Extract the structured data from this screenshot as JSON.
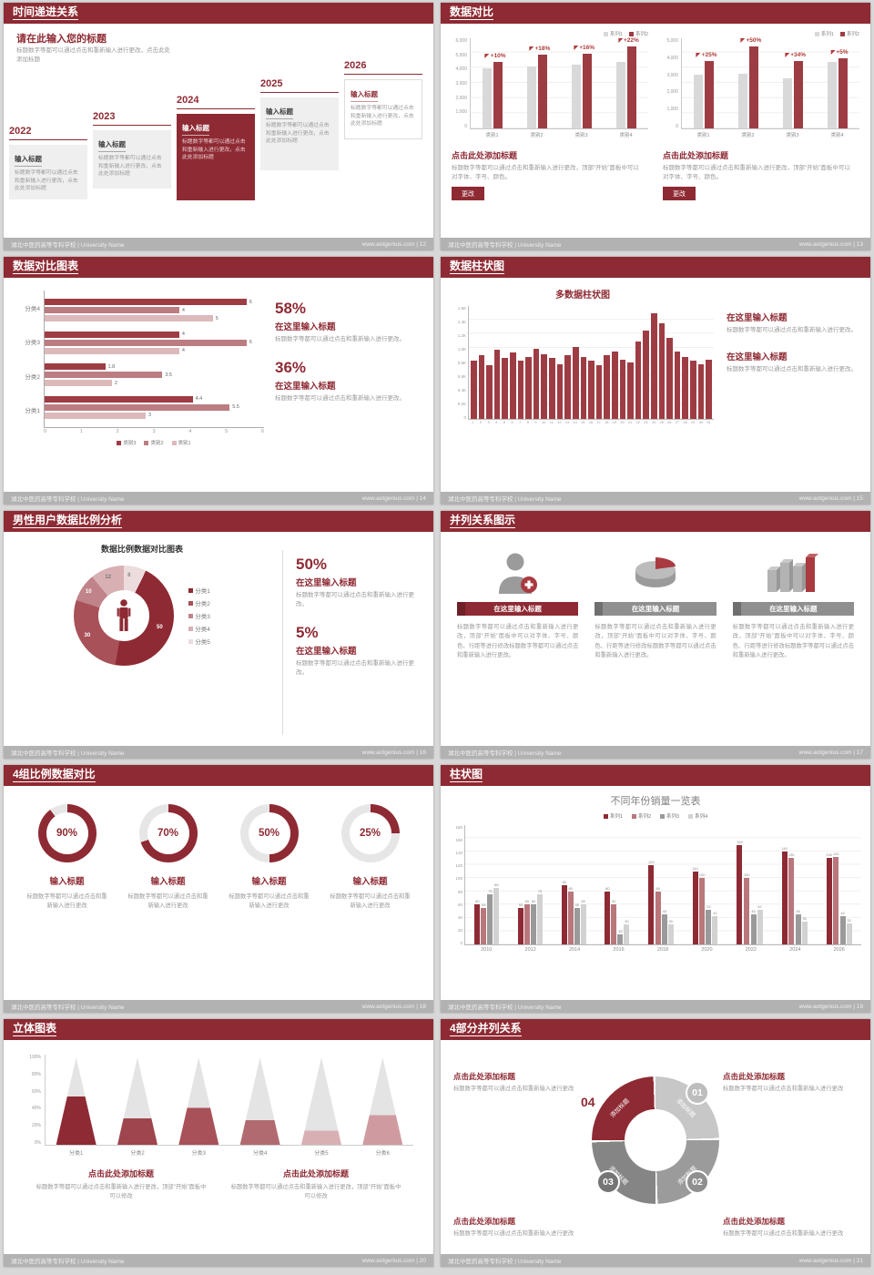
{
  "colors": {
    "primary": "#8e2a33",
    "bar_red": "#9e3c44",
    "bar_gray": "#d9d9d9",
    "red_mid": "#bb7d81",
    "red_light": "#dcb9bb"
  },
  "common": {
    "footer_left": "湖北中医药高等专科学校 | University Name"
  },
  "slides": {
    "s12": {
      "header": "时间递进关系",
      "footer_right": "www.aotgenius.com | 12",
      "title": "请在此输入您的标题",
      "subtitle": "标题数字等都可以通过点击和重新输入进行更改，点击此处添加标题",
      "steps": [
        {
          "year": "2022",
          "style": "gray",
          "title": "输入标题",
          "text": "标题数字等都可以通过点击和重新输入进行更改，点击此处添加标题"
        },
        {
          "year": "2023",
          "style": "gray",
          "title": "输入标题",
          "text": "标题数字等都可以通过点击和重新输入进行更改，点击此处添加标题"
        },
        {
          "year": "2024",
          "style": "red",
          "title": "输入标题",
          "text": "标题数字等都可以通过点击和重新输入进行更改，点击此处添加标题"
        },
        {
          "year": "2025",
          "style": "gray",
          "title": "输入标题",
          "text": "标题数字等都可以通过点击和重新输入进行更改，点击此处添加标题"
        },
        {
          "year": "2026",
          "style": "white",
          "title": "输入标题",
          "text": "标题数字等都可以通过点击和重新输入进行更改，点击此处添加标题"
        }
      ]
    },
    "s13": {
      "header": "数据对比",
      "footer_right": "www.aotgenius.com | 13",
      "charts": [
        {
          "legend": [
            "系列1",
            "系列2"
          ],
          "categories": [
            "类别1",
            "类别2",
            "类别3",
            "类别4"
          ],
          "gray": [
            4000,
            4150,
            4250,
            4450
          ],
          "red": [
            4400,
            4900,
            4950,
            5450
          ],
          "labels": [
            "+10%",
            "+18%",
            "+16%",
            "+22%"
          ],
          "ymax": 6000,
          "yticks": [
            "6,000",
            "5,000",
            "4,000",
            "3,000",
            "2,000",
            "1,000",
            "0"
          ],
          "title": "点击此处添加标题",
          "desc": "标题数字等都可以通过点击和重新输入进行更改，顶部“开始”面板中可以对字体、字号、颜色。",
          "btn": "更改"
        },
        {
          "legend": [
            "系列1",
            "系列2"
          ],
          "categories": [
            "类别1",
            "类别2",
            "类别3",
            "类别4"
          ],
          "gray": [
            3000,
            3050,
            2800,
            3700
          ],
          "red": [
            3750,
            4550,
            3750,
            3900
          ],
          "labels": [
            "+25%",
            "+50%",
            "+34%",
            "+5%"
          ],
          "ymax": 5000,
          "yticks": [
            "5,000",
            "4,000",
            "3,000",
            "2,000",
            "1,000",
            "0"
          ],
          "title": "点击此处添加标题",
          "desc": "标题数字等都可以通过点击和重新输入进行更改，顶部“开始”面板中可以对字体、字号、颜色。",
          "btn": "更改"
        }
      ]
    },
    "s14": {
      "header": "数据对比图表",
      "footer_right": "www.aotgenius.com | 14",
      "chart": {
        "categories": [
          "分类4",
          "分类3",
          "分类2",
          "分类1"
        ],
        "values": [
          [
            6,
            4,
            5
          ],
          [
            4,
            6,
            4
          ],
          [
            1.8,
            3.5,
            2
          ],
          [
            4.4,
            5.5,
            3
          ]
        ],
        "colors": [
          "#9e3c44",
          "#bb7d81",
          "#dcb9bb"
        ],
        "series": [
          "类别3",
          "类别2",
          "类别1"
        ],
        "xticks": [
          "0",
          "1",
          "2",
          "3",
          "4",
          "5",
          "6"
        ],
        "xmax": 6
      },
      "stats": [
        {
          "pct": "58%",
          "title": "在这里输入标题",
          "text": "标题数字等都可以通过点击和重新输入进行更改。"
        },
        {
          "pct": "36%",
          "title": "在这里输入标题",
          "text": "标题数字等都可以通过点击和重新输入进行更改。"
        }
      ]
    },
    "s15": {
      "header": "数据柱状图",
      "footer_right": "www.aotgenius.com | 15",
      "chart_title": "多数据柱状图",
      "ymax": 1600,
      "yticks": [
        "1.6K",
        "1.4K",
        "1.2K",
        "1.0K",
        "0.8K",
        "0.6K",
        "0.4K",
        "0.2K",
        "0"
      ],
      "values": [
        820,
        900,
        760,
        980,
        870,
        940,
        820,
        880,
        1000,
        920,
        860,
        780,
        900,
        1020,
        880,
        820,
        760,
        900,
        960,
        840,
        800,
        1100,
        1250,
        1500,
        1350,
        1150,
        950,
        880,
        820,
        780,
        840
      ],
      "xlabels": [
        "1",
        "2",
        "3",
        "4",
        "5",
        "6",
        "7",
        "8",
        "9",
        "10",
        "11",
        "12",
        "13",
        "14",
        "15",
        "16",
        "17",
        "18",
        "19",
        "20",
        "21",
        "22",
        "23",
        "24",
        "25",
        "26",
        "27",
        "28",
        "29",
        "30",
        "31"
      ],
      "blocks": [
        {
          "title": "在这里输入标题",
          "text": "标题数字等都可以通过点击和重新输入进行更改。"
        },
        {
          "title": "在这里输入标题",
          "text": "标题数字等都可以通过点击和重新输入进行更改。"
        }
      ]
    },
    "s16": {
      "header": "男性用户数据比例分析",
      "footer_right": "www.aotgenius.com | 16",
      "chart_title": "数据比例数据对比图表",
      "segments": [
        {
          "v": 8,
          "d": "8",
          "c": "#ecdcdd",
          "tc": "#8a8a8a"
        },
        {
          "v": 50,
          "d": "50",
          "c": "#8e2a33",
          "tc": "#ffffff"
        },
        {
          "v": 30,
          "d": "30",
          "c": "#a85158",
          "tc": "#ffffff"
        },
        {
          "v": 10,
          "d": "10",
          "c": "#c1838a",
          "tc": "#ffffff"
        },
        {
          "v": 12,
          "d": "12",
          "c": "#d8b0b3",
          "tc": "#777777"
        }
      ],
      "legend": [
        {
          "label": "分类1",
          "color": "#8e2a33"
        },
        {
          "label": "分类2",
          "color": "#a85158"
        },
        {
          "label": "分类3",
          "color": "#c1838a"
        },
        {
          "label": "分类4",
          "color": "#d8b0b3"
        },
        {
          "label": "分类5",
          "color": "#ecdcdd"
        }
      ],
      "stats": [
        {
          "pct": "50%",
          "title": "在这里输入标题",
          "text": "标题数字等都可以通过点击和重新输入进行更改。"
        },
        {
          "pct": "5%",
          "title": "在这里输入标题",
          "text": "标题数字等都可以通过点击和重新输入进行更改。"
        }
      ]
    },
    "s17": {
      "header": "并列关系图示",
      "footer_right": "www.aotgenius.com | 17",
      "items": [
        {
          "style": "red",
          "title": "在这里输入标题",
          "text": "标题数字等都可以通过点击和重新输入进行更改，顶部“开始”面板中可以对字体、字号、颜色、行距等进行修改标题数字等都可以通过点击和重新输入进行更改。"
        },
        {
          "style": "gray",
          "title": "在这里输入标题",
          "text": "标题数字等都可以通过点击和重新输入进行更改，顶部“开始”面板中可以对字体、字号、颜色、行距等进行修改标题数字等都可以通过点击和重新输入进行更改。"
        },
        {
          "style": "gray",
          "title": "在这里输入标题",
          "text": "标题数字等都可以通过点击和重新输入进行更改，顶部“开始”面板中可以对字体、字号、颜色、行距等进行修改标题数字等都可以通过点击和重新输入进行更改。"
        }
      ]
    },
    "s18": {
      "header": "4组比例数据对比",
      "footer_right": "www.aotgenius.com | 18",
      "rings": [
        {
          "pct": 90,
          "label": "90%",
          "title": "输入标题",
          "text": "标题数字等都可以通过点击和重新输入进行更改"
        },
        {
          "pct": 70,
          "label": "70%",
          "title": "输入标题",
          "text": "标题数字等都可以通过点击和重新输入进行更改"
        },
        {
          "pct": 50,
          "label": "50%",
          "title": "输入标题",
          "text": "标题数字等都可以通过点击和重新输入进行更改"
        },
        {
          "pct": 25,
          "label": "25%",
          "title": "输入标题",
          "text": "标题数字等都可以通过点击和重新输入进行更改"
        }
      ]
    },
    "s19": {
      "header": "柱状图",
      "footer_right": "www.aotgenius.com | 19",
      "chart_title": "不同年份销量一览表",
      "legend": [
        {
          "name": "系列1",
          "color": "#8e2a33"
        },
        {
          "name": "系列2",
          "color": "#b9777c"
        },
        {
          "name": "系列3",
          "color": "#9a9a9a"
        },
        {
          "name": "系列4",
          "color": "#d2d2d2"
        }
      ],
      "years": [
        "2010",
        "2012",
        "2014",
        "2016",
        "2018",
        "2020",
        "2022",
        "2024",
        "2026"
      ],
      "values": [
        [
          60,
          55,
          75,
          85
        ],
        [
          55,
          60,
          60,
          75
        ],
        [
          90,
          80,
          55,
          60
        ],
        [
          80,
          60,
          15,
          30
        ],
        [
          120,
          80,
          45,
          30
        ],
        [
          110,
          100,
          52,
          42
        ],
        [
          150,
          100,
          45,
          52
        ],
        [
          140,
          130,
          45,
          35
        ],
        [
          130,
          132,
          42,
          32
        ]
      ],
      "ymax": 180,
      "yticks": [
        "180",
        "160",
        "140",
        "120",
        "100",
        "80",
        "60",
        "40",
        "20",
        "0"
      ]
    },
    "s20": {
      "header": "立体图表",
      "footer_right": "www.aotgenius.com | 20",
      "yticks": [
        "100%",
        "80%",
        "60%",
        "40%",
        "20%",
        "0%"
      ],
      "cones": [
        {
          "label": "分类1",
          "fill": 55,
          "color": "#8e2a33"
        },
        {
          "label": "分类2",
          "fill": 30,
          "color": "#9e454d"
        },
        {
          "label": "分类3",
          "fill": 42,
          "color": "#a85158"
        },
        {
          "label": "分类4",
          "fill": 28,
          "color": "#b06a70"
        },
        {
          "label": "分类5",
          "fill": 16,
          "color": "#d8b0b3"
        },
        {
          "label": "分类6",
          "fill": 34,
          "color": "#cf9ba0"
        }
      ],
      "blocks": [
        {
          "title": "点击此处添加标题",
          "text": "标题数字等都可以通过点击和重新输入进行更改，顶部“开始”面板中可以修改"
        },
        {
          "title": "点击此处添加标题",
          "text": "标题数字等都可以通过点击和重新输入进行更改，顶部“开始”面板中可以修改"
        }
      ]
    },
    "s21": {
      "header": "4部分并列关系",
      "footer_right": "www.aotgenius.com | 21",
      "seg_label": "添加标题",
      "segments": [
        {
          "num": "01",
          "color": "#c7c7c7",
          "badge": "#bdbdbd",
          "shape": "circle"
        },
        {
          "num": "02",
          "color": "#9b9b9b",
          "badge": "#8f8f8f",
          "shape": "circle"
        },
        {
          "num": "03",
          "color": "#858585",
          "badge": "#757575",
          "shape": "circle"
        },
        {
          "num": "04",
          "color": "#8e2a33",
          "badge": "#8e2a33",
          "shape": "text"
        }
      ],
      "blocks": [
        {
          "title": "点击此处添加标题",
          "text": "标题数字等都可以通过点击和重新输入进行更改"
        },
        {
          "title": "点击此处添加标题",
          "text": "标题数字等都可以通过点击和重新输入进行更改"
        },
        {
          "title": "点击此处添加标题",
          "text": "标题数字等都可以通过点击和重新输入进行更改"
        },
        {
          "title": "点击此处添加标题",
          "text": "标题数字等都可以通过点击和重新输入进行更改"
        }
      ]
    }
  }
}
